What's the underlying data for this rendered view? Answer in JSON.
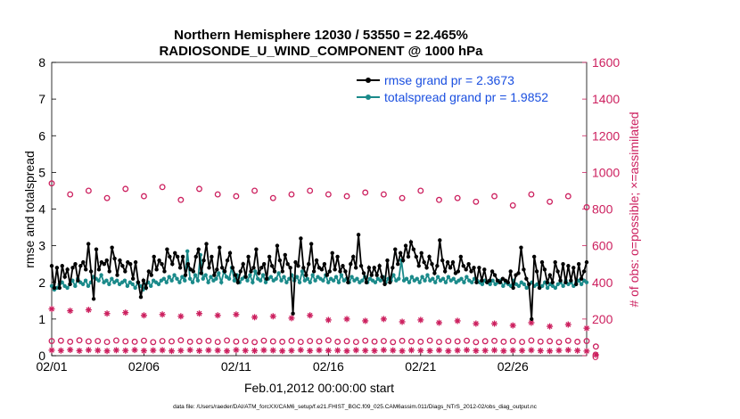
{
  "colors": {
    "rmse": "#000000",
    "spread": "#1a8a8a",
    "obs": "#cc1f5e",
    "legend_text": "#1a4fe0",
    "axis": "#000000"
  },
  "chart_data": {
    "type": "line",
    "title_line1": "Northern Hemisphere 12030 / 53550 = 22.465%",
    "title_line2": "RADIOSONDE_U_WIND_COMPONENT @ 1000 hPa",
    "xlabel": "Feb.01,2012 00:00:00 start",
    "ylabel_left": "rmse and totalspread",
    "ylabel_right": "# of obs: o=possible; ×=assimilated",
    "footer": "data file: /Users/raeder/DAI/ATM_forcXX/CAM6_setup/f.e21.FHIST_BGC.f09_025.CAM6assim.011/Diags_NTrS_2012-02/obs_diag_output.nc",
    "x_ticks": [
      "02/01",
      "02/06",
      "02/11",
      "02/16",
      "02/21",
      "02/26"
    ],
    "x_tick_days": [
      0,
      5,
      10,
      15,
      20,
      25
    ],
    "xlim": [
      0,
      29
    ],
    "y_left_ticks": [
      "0",
      "1",
      "2",
      "3",
      "4",
      "5",
      "6",
      "7",
      "8"
    ],
    "ylim_left": [
      0,
      8
    ],
    "y_right_ticks": [
      "0",
      "200",
      "400",
      "600",
      "800",
      "1000",
      "1200",
      "1400",
      "1600"
    ],
    "ylim_right": [
      0,
      1600
    ],
    "legend": [
      {
        "name": "rmse",
        "label": "rmse grand pr = 2.3673"
      },
      {
        "name": "totalspread",
        "label": "totalspread grand pr = 1.9852"
      }
    ],
    "series": [
      {
        "name": "rmse",
        "axis": "left",
        "values": [
          2.45,
          1.85,
          2.4,
          1.85,
          2.45,
          2.15,
          2.35,
          1.95,
          2.4,
          2.5,
          2.05,
          2.45,
          2.55,
          2.35,
          3.05,
          2.3,
          1.55,
          2.9,
          2.35,
          2.55,
          2.5,
          2.6,
          2.3,
          2.95,
          2.65,
          2.2,
          2.6,
          2.45,
          2.3,
          2.55,
          2.5,
          2.1,
          2.55,
          2.0,
          1.6,
          2.05,
          1.85,
          2.3,
          2.2,
          2.7,
          2.35,
          2.6,
          2.5,
          2.3,
          2.9,
          2.7,
          2.5,
          2.8,
          2.7,
          2.4,
          2.7,
          2.2,
          2.5,
          2.35,
          2.3,
          2.7,
          2.9,
          2.25,
          2.6,
          3.05,
          2.4,
          2.7,
          2.2,
          2.35,
          2.95,
          2.4,
          2.3,
          2.6,
          2.8,
          2.4,
          2.2,
          2.0,
          2.3,
          2.5,
          2.15,
          2.7,
          2.3,
          2.4,
          2.9,
          2.25,
          2.4,
          2.5,
          2.1,
          2.7,
          2.45,
          2.3,
          3.0,
          2.6,
          2.3,
          2.75,
          2.5,
          2.4,
          1.15,
          2.55,
          2.45,
          3.2,
          2.4,
          2.2,
          2.5,
          3.05,
          2.3,
          2.6,
          2.4,
          2.35,
          2.5,
          2.2,
          2.3,
          2.8,
          2.35,
          2.7,
          2.3,
          2.45,
          2.3,
          2.0,
          2.5,
          2.7,
          2.4,
          3.3,
          2.45,
          2.25,
          2.0,
          2.4,
          2.2,
          2.4,
          2.2,
          2.45,
          2.15,
          1.95,
          2.6,
          2.0,
          2.4,
          2.9,
          2.5,
          2.8,
          2.6,
          3.0,
          2.7,
          3.1,
          2.9,
          2.7,
          2.45,
          2.8,
          2.55,
          2.4,
          2.7,
          2.5,
          2.25,
          2.45,
          3.15,
          2.6,
          2.3,
          2.55,
          2.4,
          2.55,
          2.25,
          2.3,
          2.7,
          2.45,
          2.35,
          2.5,
          2.3,
          2.4,
          2.0,
          2.4,
          2.05,
          2.35,
          2.0,
          2.05,
          2.3,
          2.2,
          2.05,
          2.0,
          2.1,
          2.05,
          2.0,
          2.3,
          1.85,
          2.2,
          2.25,
          2.95,
          2.35,
          2.1,
          1.95,
          1.0,
          2.7,
          2.3,
          1.85,
          2.55,
          2.35,
          2.0,
          2.2,
          2.0,
          2.55,
          2.3,
          2.05,
          2.5,
          2.0,
          2.45,
          2.05,
          2.4,
          1.95,
          2.5,
          2.1,
          2.3,
          2.55
        ]
      },
      {
        "name": "totalspread",
        "axis": "left",
        "values": [
          1.9,
          1.8,
          1.85,
          1.95,
          2.0,
          1.9,
          1.85,
          1.95,
          2.05,
          1.9,
          2.1,
          2.0,
          1.95,
          2.05,
          1.9,
          2.0,
          2.15,
          2.1,
          2.05,
          2.2,
          2.0,
          2.05,
          1.95,
          2.1,
          2.0,
          2.05,
          1.95,
          2.0,
          2.05,
          1.9,
          2.0,
          1.95,
          1.85,
          2.0,
          1.9,
          1.8,
          1.95,
          2.0,
          1.9,
          2.05,
          2.0,
          1.95,
          2.05,
          2.1,
          2.0,
          2.15,
          2.05,
          2.2,
          2.1,
          2.0,
          2.15,
          2.05,
          2.85,
          2.1,
          2.0,
          2.2,
          2.05,
          2.75,
          2.1,
          2.2,
          2.0,
          2.15,
          2.05,
          2.1,
          2.25,
          2.0,
          2.3,
          2.15,
          2.1,
          2.4,
          2.05,
          2.2,
          2.0,
          2.1,
          2.15,
          2.05,
          2.2,
          2.0,
          2.3,
          2.1,
          2.05,
          2.2,
          2.0,
          2.1,
          2.15,
          2.05,
          2.1,
          2.25,
          2.05,
          2.15,
          2.0,
          2.1,
          2.2,
          2.05,
          2.15,
          2.0,
          2.3,
          2.05,
          2.1,
          2.0,
          2.2,
          2.05,
          2.15,
          2.1,
          2.05,
          2.2,
          2.0,
          2.1,
          2.05,
          2.15,
          2.0,
          2.2,
          2.05,
          2.1,
          2.0,
          2.15,
          2.05,
          2.1,
          2.0,
          2.05,
          2.15,
          2.0,
          2.1,
          2.05,
          2.0,
          2.1,
          2.05,
          2.15,
          2.0,
          2.1,
          2.05,
          2.2,
          2.05,
          2.1,
          2.6,
          2.05,
          2.1,
          2.0,
          2.15,
          2.05,
          2.1,
          2.0,
          2.15,
          2.05,
          2.2,
          2.05,
          2.1,
          2.0,
          2.15,
          2.05,
          2.1,
          2.0,
          2.15,
          2.05,
          2.1,
          2.0,
          2.05,
          2.1,
          2.0,
          2.15,
          2.05,
          2.0,
          2.1,
          2.05,
          2.0,
          1.95,
          2.05,
          2.0,
          1.95,
          2.05,
          1.95,
          2.0,
          2.05,
          1.9,
          2.0,
          1.95,
          1.9,
          2.05,
          1.95,
          1.9,
          2.0,
          1.95,
          1.85,
          1.95,
          2.0,
          1.9,
          1.95,
          1.85,
          1.9,
          2.0,
          1.85,
          1.95,
          1.9,
          1.85,
          1.95,
          2.0,
          1.9,
          2.05,
          1.95,
          2.0,
          1.9,
          2.0,
          2.05,
          1.95,
          2.05,
          2.0
        ]
      },
      {
        "name": "obs_possible",
        "axis": "right",
        "period_days": 1,
        "values": [
          940,
          880,
          900,
          860,
          910,
          870,
          920,
          850,
          910,
          880,
          870,
          900,
          860,
          880,
          900,
          880,
          870,
          890,
          880,
          860,
          900,
          850,
          860,
          840,
          870,
          820,
          880,
          840,
          870,
          810
        ]
      },
      {
        "name": "obs_assimilated",
        "axis": "right",
        "period_days": 1,
        "values": [
          255,
          245,
          250,
          230,
          235,
          220,
          225,
          215,
          230,
          220,
          225,
          210,
          215,
          205,
          220,
          195,
          200,
          190,
          200,
          185,
          195,
          180,
          190,
          175,
          175,
          165,
          180,
          160,
          170,
          150
        ]
      },
      {
        "name": "obs_possible_low",
        "axis": "right",
        "period_days": 0.5,
        "values": [
          80,
          82,
          76,
          84,
          78,
          80,
          75,
          83,
          78,
          76,
          82,
          74,
          80,
          78,
          84,
          76,
          79,
          81,
          75,
          83,
          77,
          80,
          74,
          82,
          78,
          76,
          81,
          75,
          80,
          78,
          84,
          76,
          79,
          75,
          82,
          77,
          80,
          74,
          81,
          78,
          76,
          83,
          75,
          80,
          78,
          82,
          74,
          79,
          81,
          76,
          80,
          75,
          83,
          77,
          79,
          74,
          82,
          76,
          80,
          50
        ]
      },
      {
        "name": "obs_assimilated_low",
        "axis": "right",
        "period_days": 0.5,
        "values": [
          30,
          28,
          32,
          27,
          31,
          29,
          26,
          30,
          28,
          31,
          27,
          29,
          30,
          26,
          28,
          31,
          27,
          30,
          29,
          26,
          31,
          28,
          27,
          30,
          29,
          26,
          28,
          31,
          27,
          30,
          28,
          29,
          26,
          30,
          28,
          27,
          31,
          29,
          26,
          30,
          28,
          27,
          30,
          26,
          29,
          31,
          27,
          28,
          30,
          26,
          29,
          28,
          30,
          27,
          26,
          29,
          31,
          28,
          25,
          5
        ]
      }
    ]
  }
}
